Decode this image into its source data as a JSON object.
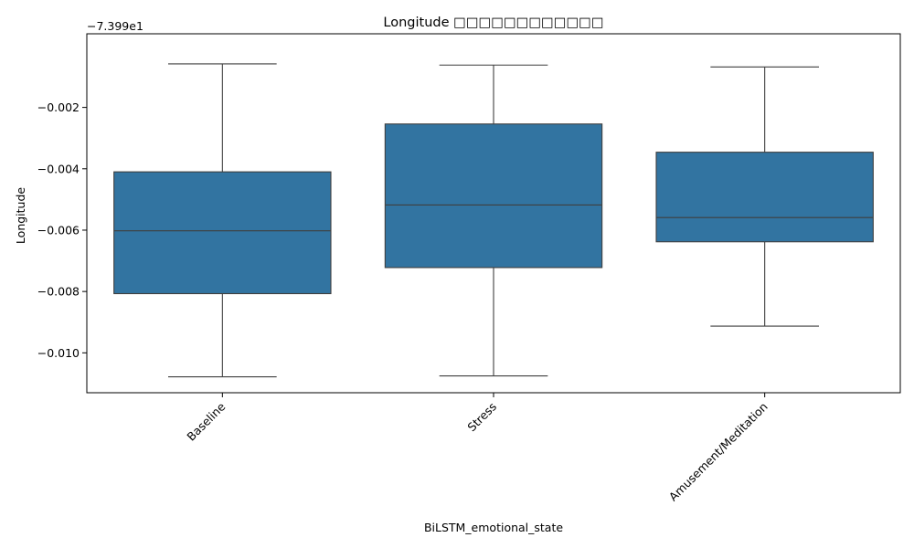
{
  "chart_data": {
    "type": "box",
    "title": "Longitude □□□□□□□□□□□□",
    "xlabel": "BiLSTM_emotional_state",
    "ylabel": "Longitude",
    "y_offset_label": "−7.399e1",
    "y_offset": -73.99,
    "ylim": [
      -0.0113,
      0.0004
    ],
    "yticks": [
      -0.002,
      -0.004,
      -0.006,
      -0.008,
      -0.01
    ],
    "ytick_labels": [
      "−0.002",
      "−0.004",
      "−0.006",
      "−0.008",
      "−0.010"
    ],
    "categories": [
      "Baseline",
      "Stress",
      "Amusement/Meditation"
    ],
    "box_color": "#3274a1",
    "line_color": "#3f3f3f",
    "boxes": [
      {
        "category": "Baseline",
        "whisker_low": -0.01078,
        "q1": -0.00807,
        "median": -0.00602,
        "q3": -0.0041,
        "whisker_high": -0.00058
      },
      {
        "category": "Stress",
        "whisker_low": -0.01075,
        "q1": -0.00722,
        "median": -0.00518,
        "q3": -0.00254,
        "whisker_high": -0.00062
      },
      {
        "category": "Amusement/Meditation",
        "whisker_low": -0.00913,
        "q1": -0.00638,
        "median": -0.00559,
        "q3": -0.00346,
        "whisker_high": -0.00068
      }
    ]
  }
}
